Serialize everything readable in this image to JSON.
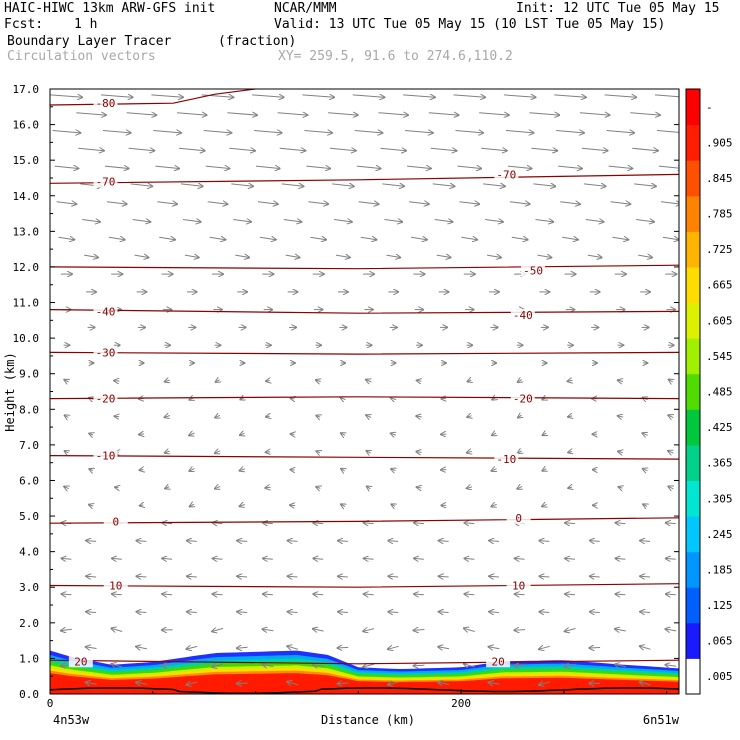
{
  "header": {
    "model_title": "HAIC-HIWC 13km ARW-GFS init",
    "org": "NCAR/MMM",
    "init": "Init: 12 UTC Tue 05 May 15",
    "fcst_label": "Fcst:",
    "fcst_value": "1 h",
    "valid": "Valid: 13 UTC Tue 05 May 15 (10 LST Tue 05 May 15)",
    "field1_name": "Boundary Layer Tracer",
    "field1_units": "(fraction)",
    "field2_name": "Circulation vectors",
    "xy_range": "XY= 259.5, 91.6 to 274.6,110.2"
  },
  "chart_data": {
    "type": "heatmap",
    "xlabel": "Distance (km)",
    "ylabel": "Height (km)",
    "xlim": [
      0,
      306
    ],
    "ylim": [
      0,
      17
    ],
    "x_ticks": [
      0,
      200
    ],
    "x_tick_labels": [
      "0",
      "200"
    ],
    "x_end_labels": [
      "4n53w",
      "6n51w"
    ],
    "y_ticks": [
      0,
      1,
      2,
      3,
      4,
      5,
      6,
      7,
      8,
      9,
      10,
      11,
      12,
      13,
      14,
      15,
      16,
      17
    ],
    "y_tick_labels": [
      "0.0",
      "1.0",
      "2.0",
      "3.0",
      "4.0",
      "5.0",
      "6.0",
      "7.0",
      "8.0",
      "9.0",
      "10.0",
      "11.0",
      "12.0",
      "13.0",
      "14.0",
      "15.0",
      "16.0",
      "17.0"
    ],
    "colorbar": {
      "labels": [
        ".005",
        ".065",
        ".125",
        ".185",
        ".245",
        ".305",
        ".365",
        ".425",
        ".485",
        ".545",
        ".605",
        ".665",
        ".725",
        ".785",
        ".845",
        ".905",
        "-"
      ],
      "colors": [
        "#ffffff",
        "#1a1aff",
        "#0060ff",
        "#0096ff",
        "#00c8ff",
        "#00e6d2",
        "#00d28c",
        "#00c83c",
        "#50dc00",
        "#a0f000",
        "#dcf000",
        "#ffdc00",
        "#ffb400",
        "#ff8200",
        "#ff5000",
        "#ff1e00",
        "#ff0000"
      ]
    },
    "tracer_top_km": [
      {
        "x": 0,
        "h": 1.22
      },
      {
        "x": 10,
        "h": 1.05
      },
      {
        "x": 30,
        "h": 0.82
      },
      {
        "x": 50,
        "h": 0.9
      },
      {
        "x": 80,
        "h": 1.15
      },
      {
        "x": 120,
        "h": 1.22
      },
      {
        "x": 135,
        "h": 1.1
      },
      {
        "x": 150,
        "h": 0.75
      },
      {
        "x": 170,
        "h": 0.7
      },
      {
        "x": 200,
        "h": 0.75
      },
      {
        "x": 220,
        "h": 0.92
      },
      {
        "x": 250,
        "h": 0.95
      },
      {
        "x": 280,
        "h": 0.82
      },
      {
        "x": 306,
        "h": 0.72
      }
    ],
    "temperature_contours": [
      {
        "label": "-80",
        "label_positions": [
          [
            27,
            16.6
          ]
        ],
        "points": [
          [
            0,
            16.55
          ],
          [
            60,
            16.6
          ],
          [
            80,
            16.85
          ],
          [
            100,
            17.0
          ]
        ]
      },
      {
        "label": "-70",
        "label_positions": [
          [
            27,
            14.4
          ],
          [
            222,
            14.6
          ]
        ],
        "points": [
          [
            0,
            14.35
          ],
          [
            150,
            14.45
          ],
          [
            306,
            14.6
          ]
        ]
      },
      {
        "label": "-50",
        "label_positions": [
          [
            235,
            11.9
          ]
        ],
        "points": [
          [
            0,
            12.0
          ],
          [
            150,
            11.95
          ],
          [
            306,
            12.05
          ]
        ]
      },
      {
        "label": "-40",
        "label_positions": [
          [
            27,
            10.75
          ],
          [
            230,
            10.65
          ]
        ],
        "points": [
          [
            0,
            10.8
          ],
          [
            150,
            10.7
          ],
          [
            306,
            10.75
          ]
        ]
      },
      {
        "label": "-30",
        "label_positions": [
          [
            27,
            9.6
          ]
        ],
        "points": [
          [
            0,
            9.6
          ],
          [
            150,
            9.55
          ],
          [
            306,
            9.6
          ]
        ]
      },
      {
        "label": "-20",
        "label_positions": [
          [
            27,
            8.3
          ],
          [
            230,
            8.3
          ]
        ],
        "points": [
          [
            0,
            8.3
          ],
          [
            150,
            8.35
          ],
          [
            306,
            8.3
          ]
        ]
      },
      {
        "label": "-10",
        "label_positions": [
          [
            27,
            6.7
          ],
          [
            222,
            6.6
          ]
        ],
        "points": [
          [
            0,
            6.7
          ],
          [
            150,
            6.65
          ],
          [
            306,
            6.6
          ]
        ]
      },
      {
        "label": "0",
        "label_positions": [
          [
            32,
            4.85
          ],
          [
            228,
            4.95
          ]
        ],
        "points": [
          [
            0,
            4.8
          ],
          [
            150,
            4.85
          ],
          [
            306,
            4.95
          ]
        ]
      },
      {
        "label": "10",
        "label_positions": [
          [
            32,
            3.05
          ],
          [
            228,
            3.05
          ]
        ],
        "points": [
          [
            0,
            3.05
          ],
          [
            150,
            3.0
          ],
          [
            306,
            3.1
          ]
        ]
      },
      {
        "label": "20",
        "label_positions": [
          [
            15,
            0.92
          ],
          [
            218,
            0.92
          ]
        ],
        "points": [
          [
            0,
            0.95
          ],
          [
            150,
            0.85
          ],
          [
            306,
            0.95
          ]
        ]
      }
    ]
  }
}
